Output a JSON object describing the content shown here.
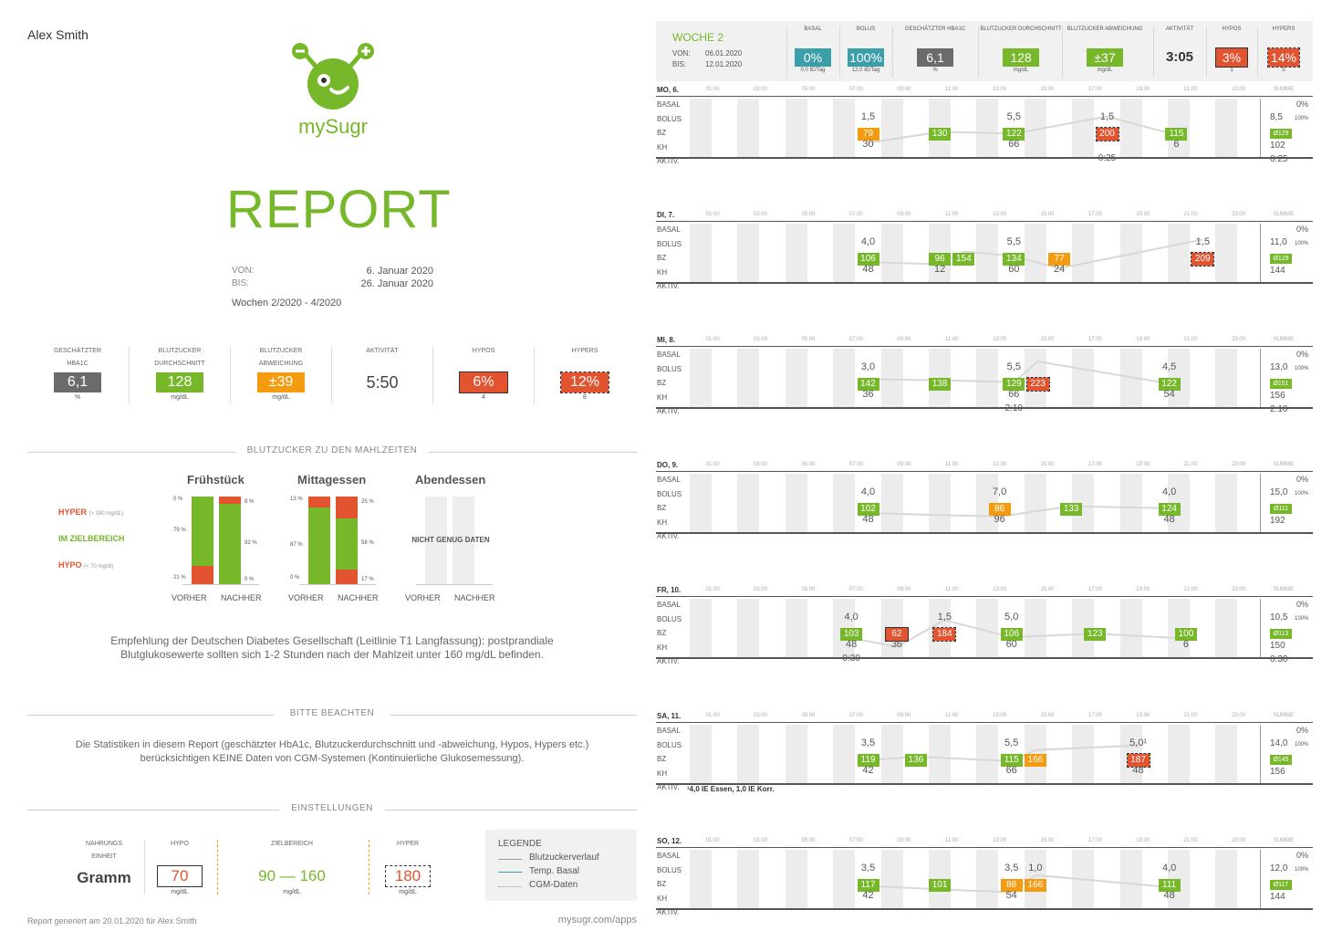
{
  "user_name": "Alex Smith",
  "logo_text": "mySugr",
  "report_title": "REPORT",
  "period": {
    "von_label": "VON:",
    "von": "6. Januar 2020",
    "bis_label": "BIS:",
    "bis": "26. Januar 2020",
    "weeks": "Wochen 2/2020 - 4/2020"
  },
  "summary": [
    {
      "label1": "GESCHÄTZTER",
      "label2": "HBA1C",
      "value": "6,1",
      "unit": "%",
      "color": "#6b6b6b"
    },
    {
      "label1": "BLUTZUCKER",
      "label2": "DURCHSCHNITT",
      "value": "128",
      "unit": "mg/dL",
      "color": "#76b82a"
    },
    {
      "label1": "BLUTZUCKER",
      "label2": "ABWEICHUNG",
      "value": "±39",
      "unit": "mg/dL",
      "color": "#f39c12"
    },
    {
      "label1": "AKTIVITÄT",
      "label2": "",
      "value": "5:50",
      "unit": "",
      "color": ""
    },
    {
      "label1": "HYPOS",
      "label2": "",
      "value": "6%",
      "unit": "4",
      "color": "#e2532f"
    },
    {
      "label1": "HYPERS",
      "label2": "",
      "value": "12%",
      "unit": "8",
      "color": "#e2532f"
    }
  ],
  "section_meals": "BLUTZUCKER ZU DEN MAHLZEITEN",
  "meal_legend": {
    "hyper": "HYPER",
    "hyper_sub": "(> 180 mg/dL)",
    "target": "IM ZIELBEREICH",
    "hypo": "HYPO",
    "hypo_sub": "(< 70 mg/dl)"
  },
  "meals": [
    {
      "name": "Frühstück",
      "before": {
        "hyper": 0,
        "target": 79,
        "hypo": 21
      },
      "after": {
        "hyper": 8,
        "target": 92,
        "hypo": 0
      },
      "labels": {
        "b_hyper": "0 %",
        "b_target": "79 %",
        "b_hypo": "21 %",
        "a_hyper": "8 %",
        "a_target": "92 %",
        "a_hypo": "0 %"
      }
    },
    {
      "name": "Mittagessen",
      "before": {
        "hyper": 13,
        "target": 87,
        "hypo": 0
      },
      "after": {
        "hyper": 25,
        "target": 58,
        "hypo": 17
      },
      "labels": {
        "b_hyper": "13 %",
        "b_target": "87 %",
        "b_hypo": "0 %",
        "a_hyper": "25 %",
        "a_target": "58 %",
        "a_hypo": "17 %"
      }
    },
    {
      "name": "Abendessen",
      "no_data": "NICHT GENUG DATEN"
    }
  ],
  "meal_axis": {
    "before": "VORHER",
    "after": "NACHHER"
  },
  "recommendation": "Empfehlung der Deutschen Diabetes Gesellschaft (Leitlinie T1 Langfassung): postprandiale Blutglukosewerte sollten sich 1-2 Stunden nach der Mahlzeit unter 160 mg/dL befinden.",
  "section_note": "BITTE BEACHTEN",
  "note_text": "Die Statistiken in diesem Report (geschätzter HbA1c, Blutzuckerdurchschnitt und -abweichung, Hypos, Hypers etc.) berücksichtigen KEINE Daten von CGM-Systemen (Kontinuierliche Glukosemessung).",
  "section_settings": "EINSTELLUNGEN",
  "settings": {
    "unit_label1": "NAHRUNGS",
    "unit_label2": "EINHEIT",
    "unit_value": "Gramm",
    "hypo_label": "HYPO",
    "hypo_value": "70",
    "hypo_unit": "mg/dL",
    "target_label": "ZIELBEREICH",
    "target_value": "90 — 160",
    "target_unit": "mg/dL",
    "hyper_label": "HYPER",
    "hyper_value": "180",
    "hyper_unit": "mg/dL"
  },
  "legend": {
    "title": "LEGENDE",
    "items": [
      "Blutzuckerverlauf",
      "Temp. Basal",
      "CGM-Daten"
    ]
  },
  "footer_left": "Report generiert am 20.01.2020 für Alex Smith",
  "footer_right": "mysugr.com/apps",
  "week": {
    "title": "WOCHE 2",
    "von_label": "VON:",
    "von": "06.01.2020",
    "bis_label": "BIS:",
    "bis": "12.01.2020",
    "stats": [
      {
        "label": "BASAL",
        "value": "0%",
        "unit": "0,0 IE/Tag",
        "color": "#3a9fa8"
      },
      {
        "label": "BOLUS",
        "value": "100%",
        "unit": "12,0 IE/Tag",
        "color": "#3a9fa8"
      },
      {
        "label": "GESCHÄTZTER HBA1C",
        "value": "6,1",
        "unit": "%",
        "color": "#6b6b6b"
      },
      {
        "label": "BLUTZUCKER DURCHSCHNITT",
        "value": "128",
        "unit": "mg/dL",
        "color": "#76b82a"
      },
      {
        "label": "BLUTZUCKER ABWEICHUNG",
        "value": "±37",
        "unit": "mg/dL",
        "color": "#76b82a"
      },
      {
        "label": "AKTIVITÄT",
        "value": "3:05",
        "unit": "",
        "color": ""
      },
      {
        "label": "HYPOS",
        "value": "3%",
        "unit": "1",
        "color": "#e2532f"
      },
      {
        "label": "HYPERS",
        "value": "14%",
        "unit": "5",
        "color": "#e2532f"
      }
    ]
  },
  "hours": [
    "01:00",
    "03:00",
    "05:00",
    "07:00",
    "09:00",
    "11:00",
    "13:00",
    "15:00",
    "17:00",
    "19:00",
    "21:00",
    "23:00"
  ],
  "summe_label": "SUMME",
  "row_labels": [
    "BASAL",
    "BOLUS",
    "BZ",
    "KH",
    "AKTIV."
  ],
  "days": [
    {
      "name": "MO, 6.",
      "entries": [
        {
          "h": 7.5,
          "bolus": "1,5",
          "bz": "79",
          "c": "orange",
          "kh": "30"
        },
        {
          "h": 10.5,
          "bz": "130",
          "c": "green"
        },
        {
          "h": 13.6,
          "bolus": "5,5",
          "bz": "122",
          "c": "green",
          "kh": "66"
        },
        {
          "h": 17.5,
          "bolus": "1,5",
          "bz": "200",
          "c": "red",
          "aktiv": "0:25"
        },
        {
          "h": 20.4,
          "bz": "115",
          "c": "green",
          "kh": "6"
        }
      ],
      "sum": {
        "bolus": "8,5",
        "bz": "Ø129",
        "kh": "102",
        "aktiv": "0:25",
        "pct": "0%",
        "pct2": "100%"
      }
    },
    {
      "name": "DI, 7.",
      "entries": [
        {
          "h": 7.5,
          "bolus": "4,0",
          "bz": "106",
          "c": "green",
          "kh": "48"
        },
        {
          "h": 10.5,
          "bz": "96",
          "c": "green",
          "kh": "12"
        },
        {
          "h": 11.5,
          "bz": "154",
          "c": "green"
        },
        {
          "h": 13.6,
          "bolus": "5,5",
          "bz": "134",
          "c": "green",
          "kh": "60"
        },
        {
          "h": 15.5,
          "bz": "77",
          "c": "orange",
          "kh": "24"
        },
        {
          "h": 21.5,
          "bolus": "1,5",
          "bz": "209",
          "c": "red"
        }
      ],
      "sum": {
        "bolus": "11,0",
        "bz": "Ø129",
        "kh": "144",
        "aktiv": "",
        "pct": "0%",
        "pct2": "100%"
      }
    },
    {
      "name": "MI, 8.",
      "entries": [
        {
          "h": 7.5,
          "bolus": "3,0",
          "bz": "142",
          "c": "green",
          "kh": "36"
        },
        {
          "h": 10.5,
          "bz": "138",
          "c": "green"
        },
        {
          "h": 13.6,
          "bolus": "5,5",
          "bz": "129",
          "c": "green",
          "kh": "66",
          "aktiv": "2:10"
        },
        {
          "h": 14.6,
          "bz": "223",
          "c": "red"
        },
        {
          "h": 20.1,
          "bolus": "4,5",
          "bz": "122",
          "c": "green",
          "kh": "54"
        }
      ],
      "sum": {
        "bolus": "13,0",
        "bz": "Ø151",
        "kh": "156",
        "aktiv": "2:10",
        "pct": "0%",
        "pct2": "100%"
      }
    },
    {
      "name": "DO, 9.",
      "entries": [
        {
          "h": 7.5,
          "bolus": "4,0",
          "bz": "102",
          "c": "green",
          "kh": "48"
        },
        {
          "h": 13.0,
          "bolus": "7,0",
          "bz": "86",
          "c": "orange",
          "kh": "96"
        },
        {
          "h": 16.0,
          "bz": "133",
          "c": "green"
        },
        {
          "h": 20.1,
          "bolus": "4,0",
          "bz": "124",
          "c": "green",
          "kh": "48"
        }
      ],
      "sum": {
        "bolus": "15,0",
        "bz": "Ø111",
        "kh": "192",
        "aktiv": "",
        "pct": "0%",
        "pct2": "100%"
      }
    },
    {
      "name": "FR, 10.",
      "entries": [
        {
          "h": 6.8,
          "bolus": "4,0",
          "bz": "103",
          "c": "green",
          "kh": "48",
          "aktiv": "0:30"
        },
        {
          "h": 8.7,
          "bz": "62",
          "c": "red",
          "kh": "36"
        },
        {
          "h": 10.7,
          "bolus": "1,5",
          "bz": "184",
          "c": "red"
        },
        {
          "h": 13.5,
          "bolus": "5,0",
          "bz": "106",
          "c": "green",
          "kh": "60"
        },
        {
          "h": 17.0,
          "bz": "123",
          "c": "green"
        },
        {
          "h": 20.8,
          "bz": "100",
          "c": "green",
          "kh": "6"
        }
      ],
      "sum": {
        "bolus": "10,5",
        "bz": "Ø113",
        "kh": "150",
        "aktiv": "0:30",
        "pct": "0%",
        "pct2": "100%"
      }
    },
    {
      "name": "SA, 11.",
      "entries": [
        {
          "h": 7.5,
          "bolus": "3,5",
          "bz": "119",
          "c": "green",
          "kh": "42"
        },
        {
          "h": 9.5,
          "bz": "136",
          "c": "green"
        },
        {
          "h": 13.5,
          "bolus": "5,5",
          "bz": "115",
          "c": "green",
          "kh": "66"
        },
        {
          "h": 14.5,
          "bz": "166",
          "c": "orange"
        },
        {
          "h": 18.8,
          "bolus": "5,0¹",
          "bz": "187",
          "c": "red",
          "kh": "48"
        }
      ],
      "sum": {
        "bolus": "14,0",
        "bz": "Ø145",
        "kh": "156",
        "aktiv": "",
        "pct": "0%",
        "pct2": "100%"
      },
      "footnote": "¹4,0 IE Essen, 1,0 IE Korr."
    },
    {
      "name": "SO, 12.",
      "entries": [
        {
          "h": 7.5,
          "bolus": "3,5",
          "bz": "117",
          "c": "green",
          "kh": "42"
        },
        {
          "h": 10.5,
          "bz": "101",
          "c": "green"
        },
        {
          "h": 13.5,
          "bolus": "3,5",
          "bz": "88",
          "c": "orange",
          "kh": "54"
        },
        {
          "h": 14.5,
          "bolus": "1,0",
          "bz": "166",
          "c": "orange"
        },
        {
          "h": 20.1,
          "bolus": "4,0",
          "bz": "111",
          "c": "green",
          "kh": "48"
        }
      ],
      "sum": {
        "bolus": "12,0",
        "bz": "Ø117",
        "kh": "144",
        "aktiv": "",
        "pct": "0%",
        "pct2": "100%"
      }
    }
  ]
}
